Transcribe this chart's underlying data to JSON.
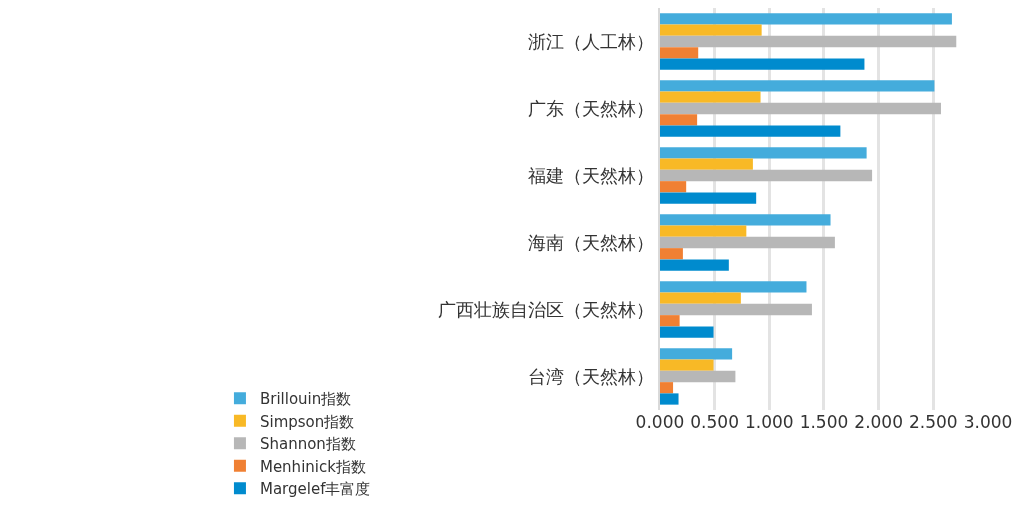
{
  "chart_data": {
    "type": "bar",
    "orientation": "horizontal",
    "categories": [
      "浙江（人工林）",
      "广东（天然林）",
      "福建（天然林）",
      "海南（天然林）",
      "广西壮族自治区（天然林）",
      "台湾（天然林）"
    ],
    "series": [
      {
        "name": "Brillouin指数",
        "color": "#44acdc",
        "values": [
          2.67,
          2.51,
          1.89,
          1.56,
          1.34,
          0.66
        ]
      },
      {
        "name": "Simpson指数",
        "color": "#f8b926",
        "values": [
          0.93,
          0.92,
          0.85,
          0.79,
          0.74,
          0.49
        ]
      },
      {
        "name": "Shannon指数",
        "color": "#b7b7b7",
        "values": [
          2.71,
          2.57,
          1.94,
          1.6,
          1.39,
          0.69
        ]
      },
      {
        "name": "Menhinick指数",
        "color": "#f08033",
        "values": [
          0.35,
          0.34,
          0.24,
          0.21,
          0.18,
          0.12
        ]
      },
      {
        "name": "Margelef丰富度",
        "color": "#008bce",
        "values": [
          1.87,
          1.65,
          0.88,
          0.63,
          0.49,
          0.17
        ]
      }
    ],
    "xlim": [
      0,
      3
    ],
    "xticks": [
      {
        "value": 0,
        "label": "0.000"
      },
      {
        "value": 0.5,
        "label": "0.500"
      },
      {
        "value": 1,
        "label": "1.000"
      },
      {
        "value": 1.5,
        "label": "1.500"
      },
      {
        "value": 2,
        "label": "2.000"
      },
      {
        "value": 2.5,
        "label": "2.500"
      },
      {
        "value": 3,
        "label": "3.000"
      }
    ],
    "grid": "x",
    "legend": "bottom"
  }
}
